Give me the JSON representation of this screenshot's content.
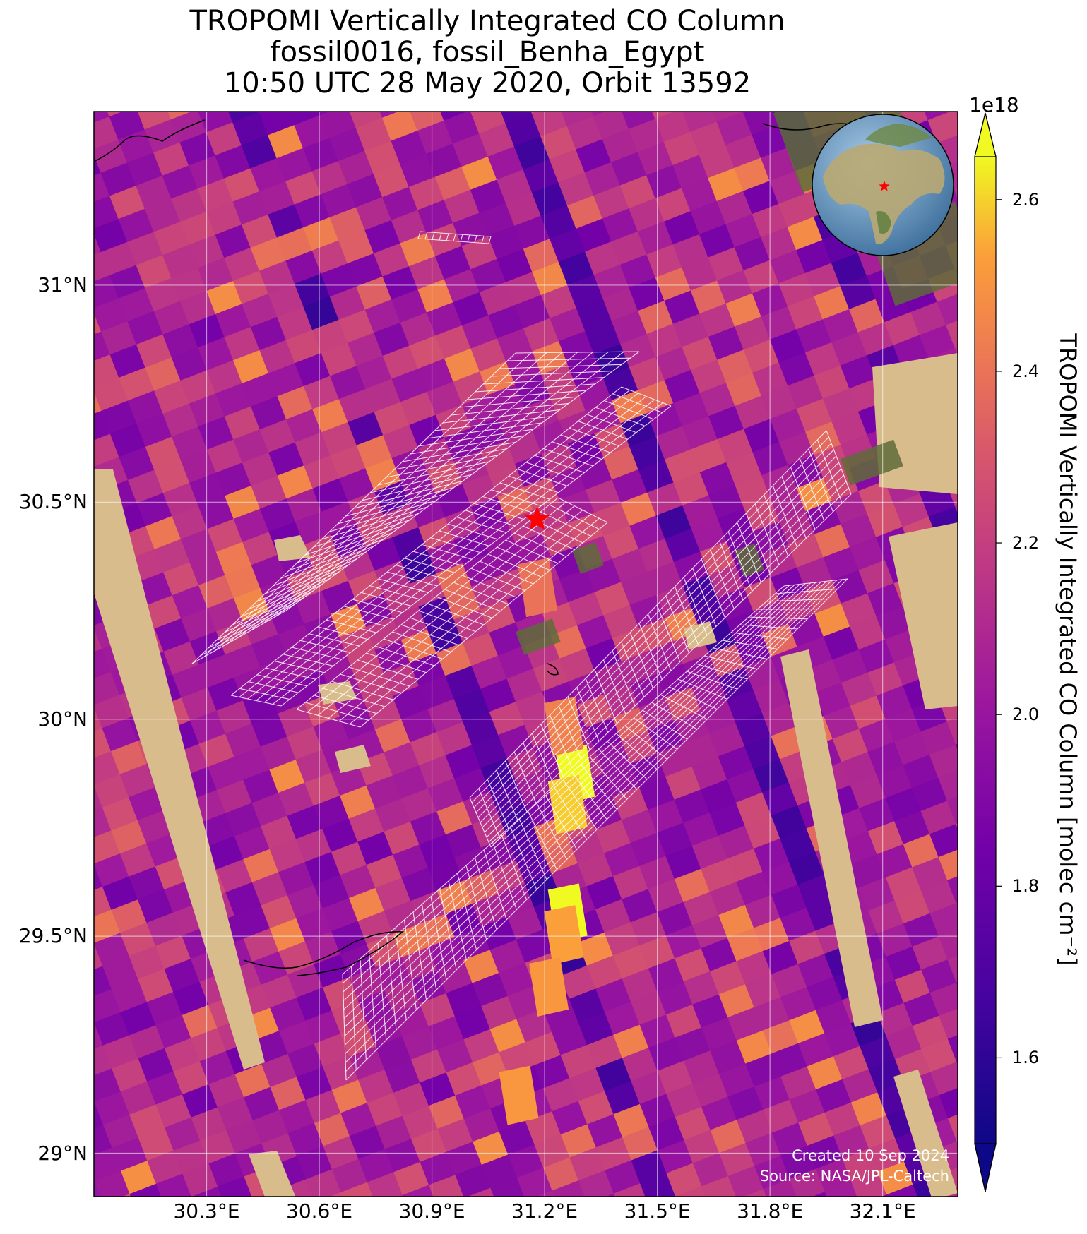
{
  "title": {
    "line1": "TROPOMI Vertically Integrated CO Column",
    "line2": "fossil0016, fossil_Benha_Egypt",
    "line3": "10:50 UTC 28 May 2020, Orbit 13592"
  },
  "map": {
    "lon_range": [
      30.0,
      32.3
    ],
    "lat_range": [
      28.9,
      31.4
    ],
    "x_ticks": [
      "30.3°E",
      "30.6°E",
      "30.9°E",
      "31.2°E",
      "31.5°E",
      "31.8°E",
      "32.1°E"
    ],
    "y_ticks": [
      "31°N",
      "30.5°N",
      "30°N",
      "29.5°N",
      "29°N"
    ],
    "site_marker": {
      "name": "fossil_Benha_Egypt",
      "lon": 31.18,
      "lat": 30.46,
      "color": "#ff0000",
      "icon": "star-icon"
    },
    "inset_globe": {
      "icon": "globe-icon",
      "marker_color": "#ff0000"
    },
    "grid": true
  },
  "colorbar": {
    "exponent": "1e18",
    "ticks": [
      "2.6",
      "2.4",
      "2.2",
      "2.0",
      "1.8",
      "1.6"
    ],
    "label": "TROPOMI Vertically Integrated CO Column [molec cm⁻²]",
    "range": [
      1.5,
      2.65
    ],
    "colormap": "plasma"
  },
  "credit": {
    "line1": "Created 10 Sep 2024",
    "line2": "Source: NASA/JPL-Caltech"
  }
}
